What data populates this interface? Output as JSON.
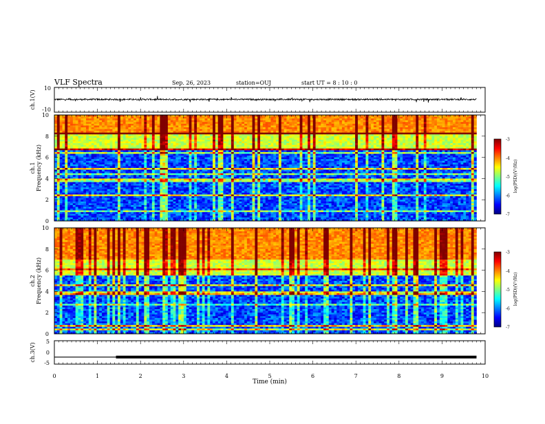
{
  "header": {
    "title": "VLF Spectra",
    "date": "Sep. 26, 2023",
    "station": "station=OUJ",
    "start": "start  UT =   8 : 10 : 0"
  },
  "colors": {
    "colormap": [
      "#000080",
      "#0000ff",
      "#0080ff",
      "#00ffff",
      "#80ff80",
      "#ffff00",
      "#ff8000",
      "#ff0000",
      "#800000"
    ],
    "waveform": "#000000"
  },
  "chart_data": [
    {
      "type": "line",
      "panel": "ch1-waveform",
      "ylabel": "ch.1(V)",
      "ylim": [
        -10,
        10
      ],
      "y_tick_labels": [
        "10",
        "-10"
      ],
      "x_range_min": [
        0,
        9.8
      ],
      "baseline_v": 0.3,
      "typical_amplitude_v": 1.2
    },
    {
      "type": "heatmap",
      "panel": "ch1-spectrogram",
      "ylabel_top": "ch.1",
      "ylabel": "Frequency (kHz)",
      "xlim": [
        0,
        10
      ],
      "ylim": [
        0,
        10
      ],
      "y_tick_labels": [
        "0",
        "2",
        "4",
        "6",
        "8",
        "10"
      ],
      "x_extent_min": 9.8,
      "colorbar": {
        "label": "log(PSD)(V²/Hz)",
        "range": [
          -7,
          -3
        ],
        "tick_labels": [
          "-3",
          "-4",
          "-5",
          "-6",
          "-7"
        ]
      },
      "upper_band_edge_khz": 6.7
    },
    {
      "type": "heatmap",
      "panel": "ch2-spectrogram",
      "ylabel_top": "ch.2",
      "ylabel": "Frequency (kHz)",
      "xlim": [
        0,
        10
      ],
      "ylim": [
        0,
        10
      ],
      "y_tick_labels": [
        "0",
        "2",
        "4",
        "6",
        "8",
        "10"
      ],
      "x_extent_min": 9.8,
      "colorbar": {
        "label": "log(PSD)(V²/Hz)",
        "range": [
          -7,
          -3
        ],
        "tick_labels": [
          "-3",
          "-4",
          "-5",
          "-6",
          "-7"
        ]
      },
      "upper_band_edge_khz": 5.5
    },
    {
      "type": "line",
      "panel": "ch3-signal",
      "ylabel": "ch.3(V)",
      "ylim": [
        -5,
        5
      ],
      "y_tick_labels": [
        "5",
        "0",
        "-5"
      ],
      "x": [
        0,
        1.43,
        1.43,
        9.8
      ],
      "y": [
        -2,
        -2,
        -2,
        -2
      ],
      "xlabel": "Time (min)",
      "xlim": [
        0,
        10
      ],
      "x_tick_labels": [
        "0",
        "1",
        "2",
        "3",
        "4",
        "5",
        "6",
        "7",
        "8",
        "9",
        "10"
      ]
    }
  ]
}
